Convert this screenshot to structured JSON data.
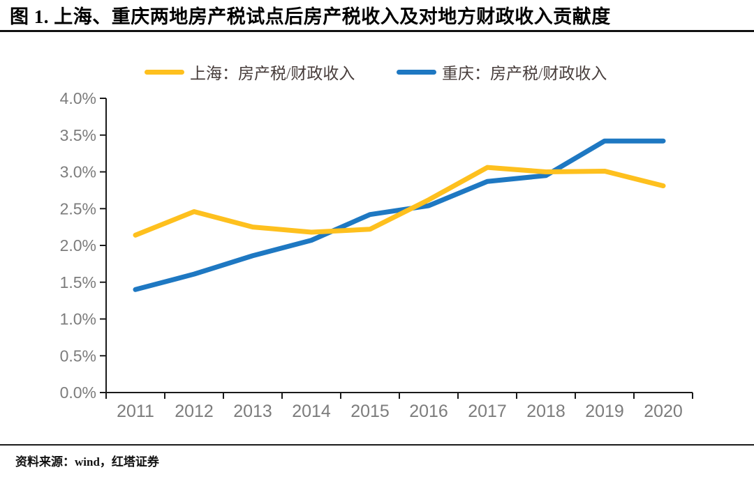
{
  "page": {
    "title": "图 1. 上海、重庆两地房产税试点后房产税收入及对地方财政收入贡献度",
    "source": "资料来源：wind，红塔证券"
  },
  "colors": {
    "shanghai_line": "#fec01e",
    "chongqing_line": "#1e78c2",
    "axis_line": "#1a1a1a",
    "tick_label": "#7c7c7c",
    "legend_text": "#473d3b"
  },
  "chart_data": {
    "type": "line",
    "title": "上海、重庆两地房产税试点后房产税收入及对地方财政收入贡献度",
    "categories": [
      "2011",
      "2012",
      "2013",
      "2014",
      "2015",
      "2016",
      "2017",
      "2018",
      "2019",
      "2020"
    ],
    "series": [
      {
        "name": "上海：房产税/财政收入",
        "color": "#fec01e",
        "values": [
          2.14,
          2.46,
          2.25,
          2.18,
          2.22,
          2.62,
          3.06,
          3.0,
          3.01,
          2.81
        ]
      },
      {
        "name": "重庆：房产税/财政收入",
        "color": "#1e78c2",
        "values": [
          1.4,
          1.61,
          1.86,
          2.07,
          2.42,
          2.54,
          2.87,
          2.95,
          3.42,
          3.42
        ]
      }
    ],
    "xlabel": "",
    "ylabel": "",
    "ylim": [
      0.0,
      4.0
    ],
    "ytick_step": 0.5,
    "ytick_labels": [
      "0.0%",
      "0.5%",
      "1.0%",
      "1.5%",
      "2.0%",
      "2.5%",
      "3.0%",
      "3.5%",
      "4.0%"
    ],
    "unit": "percent of fiscal revenue",
    "grid": false,
    "legend_position": "top"
  }
}
